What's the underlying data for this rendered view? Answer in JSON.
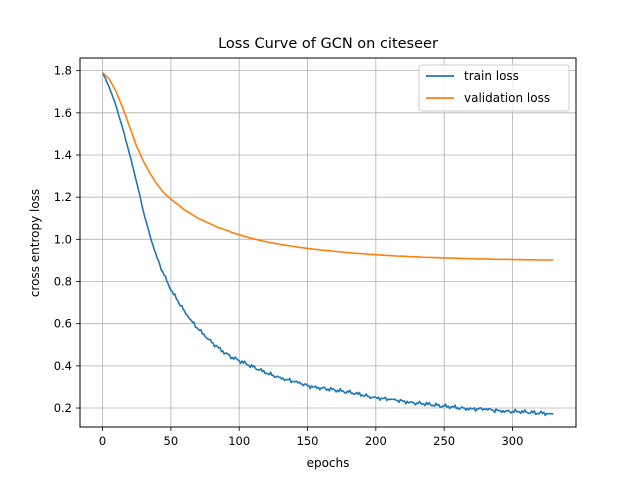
{
  "chart_data": {
    "type": "line",
    "title": "Loss Curve of GCN on citeseer",
    "xlabel": "epochs",
    "ylabel": "cross entropy loss",
    "xlim": [
      -16.5,
      346.5
    ],
    "ylim": [
      0.11,
      1.86
    ],
    "xticks": [
      0,
      50,
      100,
      150,
      200,
      250,
      300
    ],
    "yticks": [
      0.2,
      0.4,
      0.6,
      0.8,
      1.0,
      1.2,
      1.4,
      1.6,
      1.8
    ],
    "ytick_labels": [
      "0.2",
      "0.4",
      "0.6",
      "0.8",
      "1.0",
      "1.2",
      "1.4",
      "1.6",
      "1.8"
    ],
    "grid": true,
    "legend_position": "top-right",
    "series": [
      {
        "name": "train loss",
        "color": "#1f77b4",
        "x": [
          0,
          5,
          10,
          15,
          20,
          25,
          30,
          35,
          40,
          45,
          50,
          55,
          60,
          65,
          70,
          75,
          80,
          85,
          90,
          95,
          100,
          105,
          110,
          115,
          120,
          125,
          130,
          135,
          140,
          145,
          150,
          155,
          160,
          165,
          170,
          175,
          180,
          185,
          190,
          195,
          200,
          205,
          210,
          215,
          220,
          225,
          230,
          235,
          240,
          245,
          250,
          255,
          260,
          265,
          270,
          275,
          280,
          285,
          290,
          295,
          300,
          305,
          310,
          315,
          320,
          325,
          330
        ],
        "y": [
          1.79,
          1.72,
          1.63,
          1.52,
          1.4,
          1.27,
          1.13,
          1.01,
          0.91,
          0.83,
          0.76,
          0.71,
          0.66,
          0.615,
          0.575,
          0.54,
          0.51,
          0.485,
          0.46,
          0.44,
          0.425,
          0.41,
          0.395,
          0.38,
          0.365,
          0.355,
          0.345,
          0.335,
          0.325,
          0.315,
          0.305,
          0.3,
          0.295,
          0.29,
          0.285,
          0.28,
          0.275,
          0.268,
          0.262,
          0.255,
          0.25,
          0.245,
          0.24,
          0.236,
          0.232,
          0.228,
          0.224,
          0.22,
          0.216,
          0.212,
          0.208,
          0.205,
          0.202,
          0.199,
          0.197,
          0.195,
          0.193,
          0.19,
          0.188,
          0.186,
          0.184,
          0.182,
          0.18,
          0.178,
          0.176,
          0.174,
          0.172
        ]
      },
      {
        "name": "validation loss",
        "color": "#ff7f0e",
        "x": [
          0,
          5,
          10,
          15,
          20,
          25,
          30,
          35,
          40,
          45,
          50,
          55,
          60,
          65,
          70,
          75,
          80,
          85,
          90,
          95,
          100,
          105,
          110,
          115,
          120,
          125,
          130,
          135,
          140,
          145,
          150,
          155,
          160,
          165,
          170,
          175,
          180,
          185,
          190,
          195,
          200,
          205,
          210,
          215,
          220,
          225,
          230,
          235,
          240,
          245,
          250,
          255,
          260,
          265,
          270,
          275,
          280,
          285,
          290,
          295,
          300,
          305,
          310,
          315,
          320,
          325,
          330
        ],
        "y": [
          1.79,
          1.76,
          1.7,
          1.62,
          1.53,
          1.44,
          1.37,
          1.31,
          1.26,
          1.22,
          1.19,
          1.165,
          1.14,
          1.12,
          1.1,
          1.085,
          1.07,
          1.055,
          1.045,
          1.032,
          1.022,
          1.012,
          1.003,
          0.995,
          0.988,
          0.982,
          0.976,
          0.971,
          0.966,
          0.961,
          0.957,
          0.953,
          0.949,
          0.946,
          0.943,
          0.94,
          0.937,
          0.934,
          0.932,
          0.929,
          0.927,
          0.925,
          0.923,
          0.921,
          0.92,
          0.918,
          0.917,
          0.915,
          0.914,
          0.913,
          0.912,
          0.911,
          0.91,
          0.909,
          0.908,
          0.907,
          0.907,
          0.906,
          0.905,
          0.905,
          0.904,
          0.904,
          0.903,
          0.903,
          0.902,
          0.902,
          0.902
        ]
      }
    ]
  }
}
